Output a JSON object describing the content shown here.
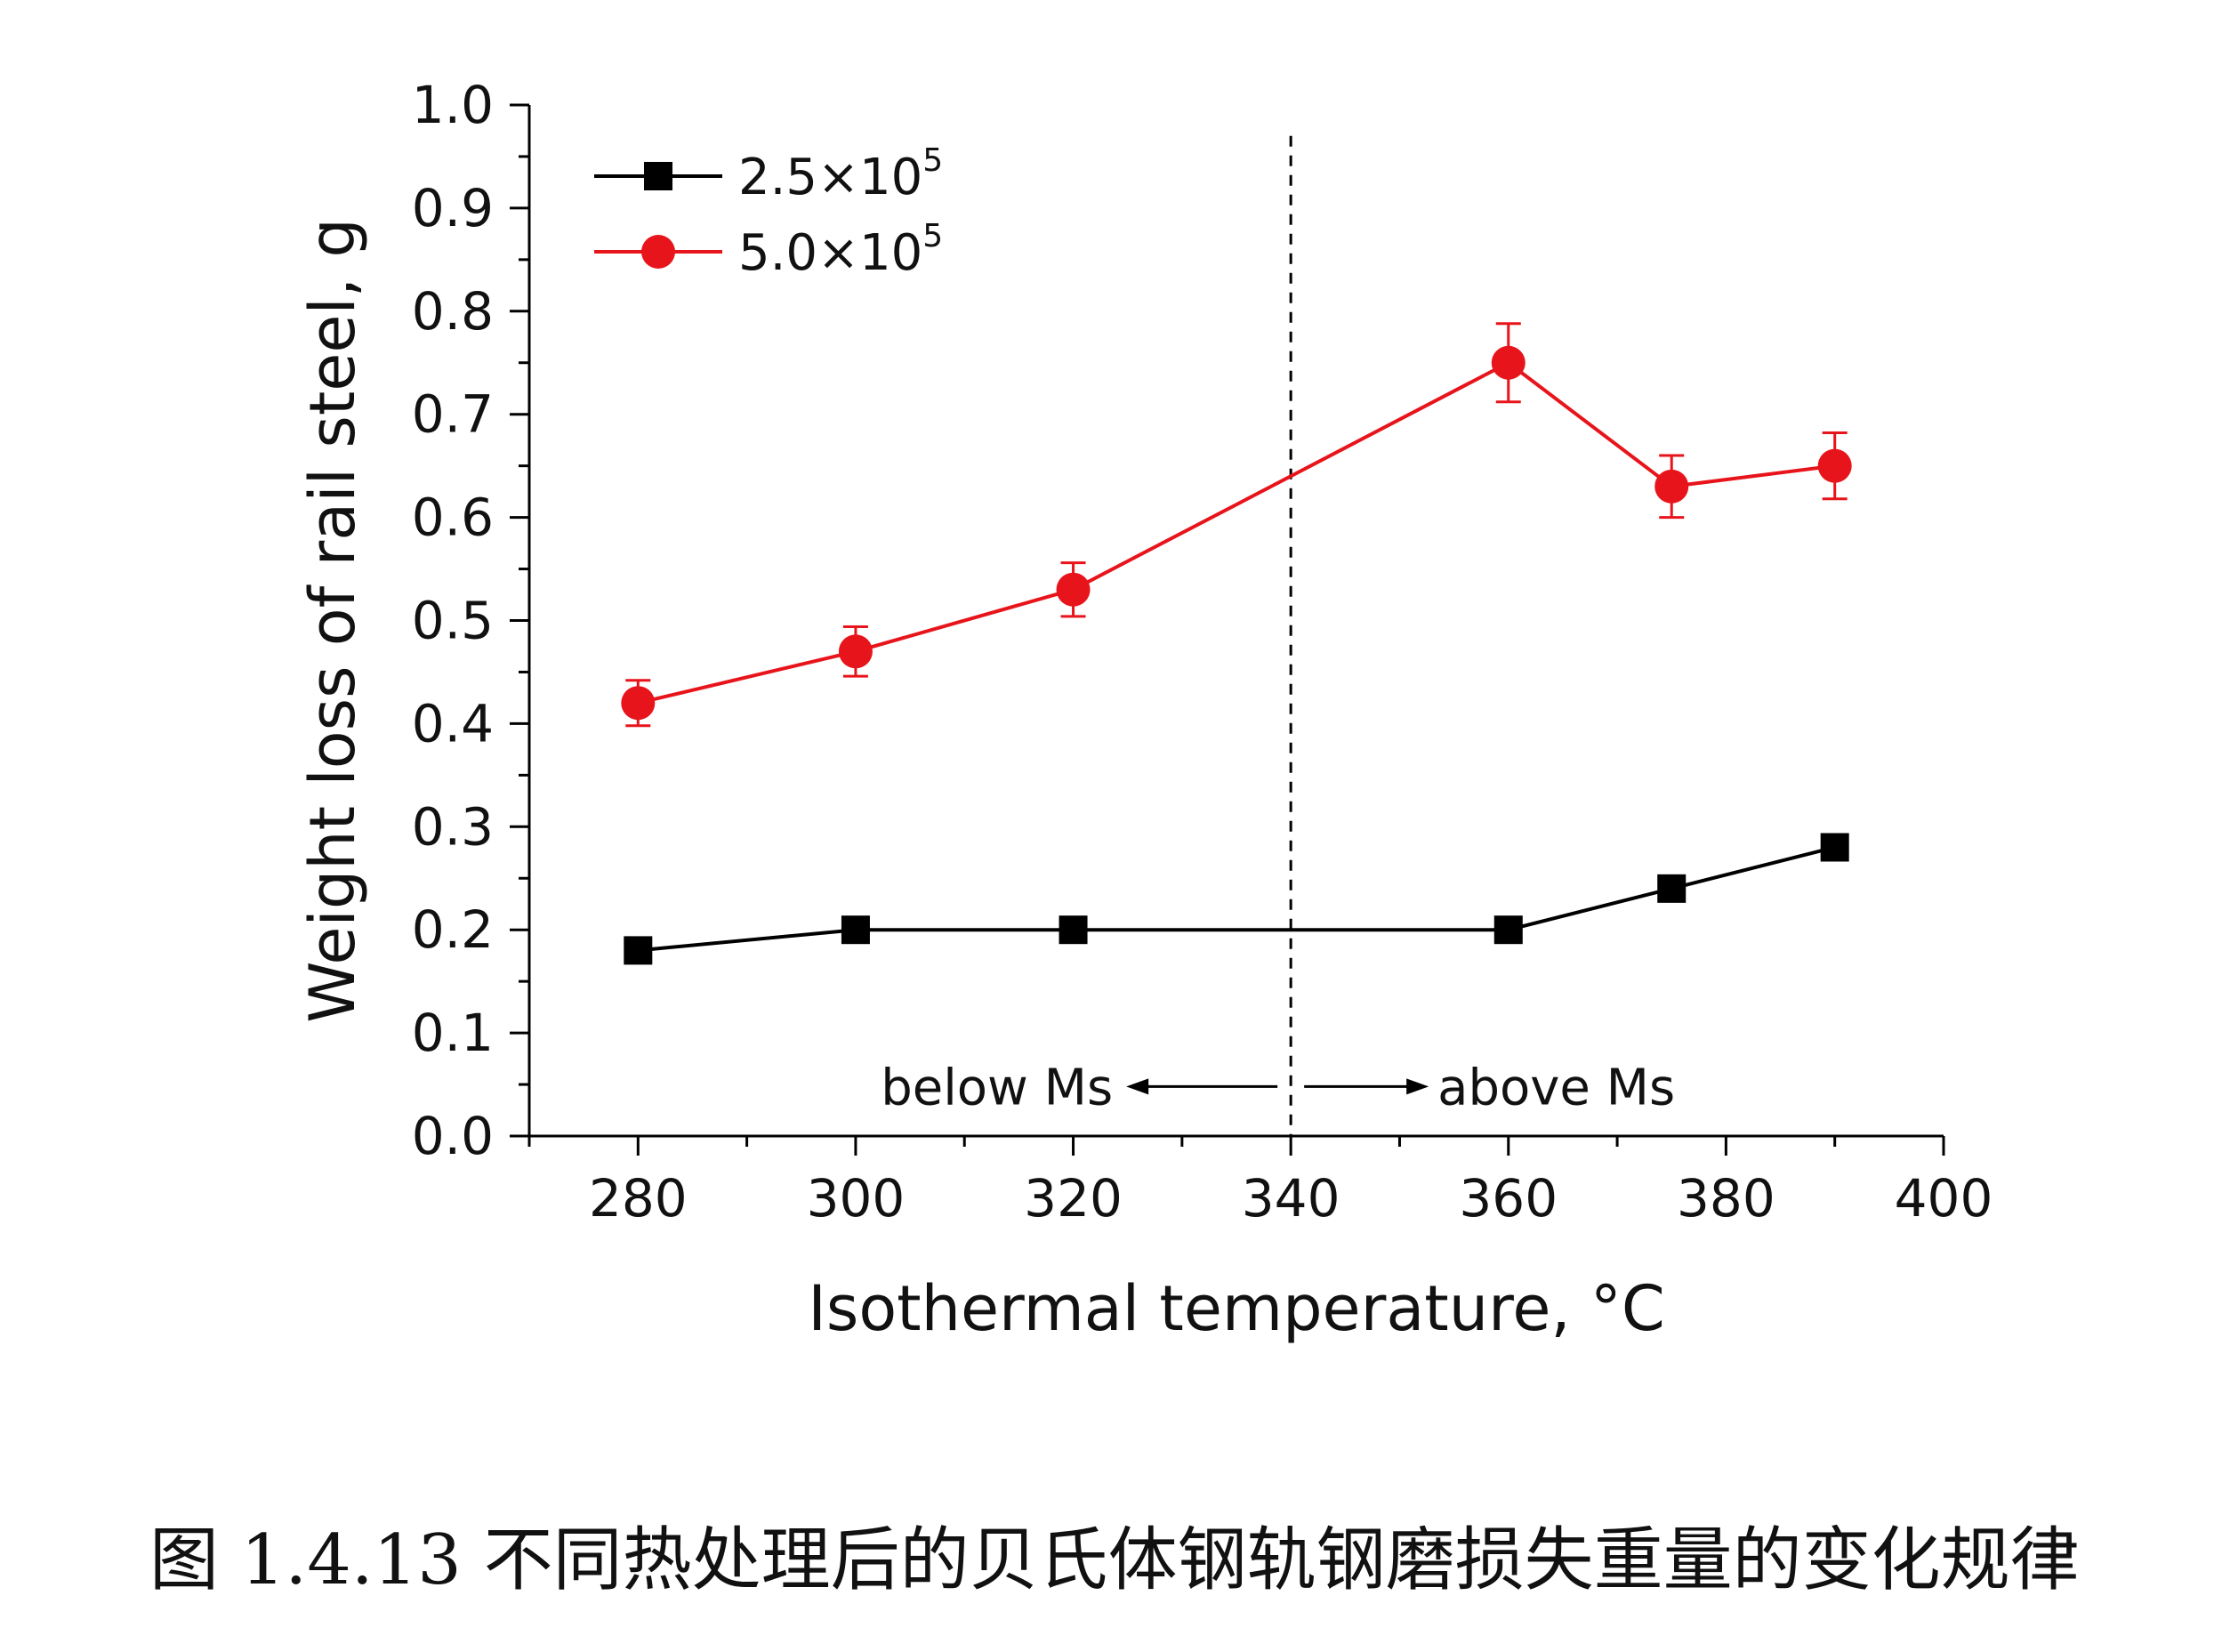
{
  "chart_data": {
    "type": "line",
    "title": "",
    "xlabel": "Isothermal temperature, °C",
    "ylabel": "Weight loss of rail steel, g",
    "xlim": [
      270,
      400
    ],
    "ylim": [
      0.0,
      1.0
    ],
    "x_ticks": [
      280,
      300,
      320,
      340,
      360,
      380,
      400
    ],
    "y_ticks": [
      0.0,
      0.1,
      0.2,
      0.3,
      0.4,
      0.5,
      0.6,
      0.7,
      0.8,
      0.9,
      1.0
    ],
    "grid": false,
    "legend_position": "top-left",
    "series": [
      {
        "name": "2.5×10^5",
        "color": "#000000",
        "marker": "square",
        "x": [
          280,
          300,
          320,
          360,
          375,
          390
        ],
        "y": [
          0.18,
          0.2,
          0.2,
          0.2,
          0.24,
          0.28
        ]
      },
      {
        "name": "5.0×10^5",
        "color": "#e8141b",
        "marker": "circle",
        "x": [
          280,
          300,
          320,
          360,
          375,
          390
        ],
        "y": [
          0.42,
          0.47,
          0.53,
          0.75,
          0.63,
          0.65
        ],
        "error": [
          0.022,
          0.024,
          0.026,
          0.038,
          0.03,
          0.032
        ]
      }
    ],
    "reference_line": {
      "x": 340,
      "style": "dashed"
    },
    "annotations": {
      "left": "below Ms",
      "right": "above Ms"
    }
  },
  "caption": "图 1.4.13  不同热处理后的贝氏体钢轨钢磨损失重量的变化规律"
}
